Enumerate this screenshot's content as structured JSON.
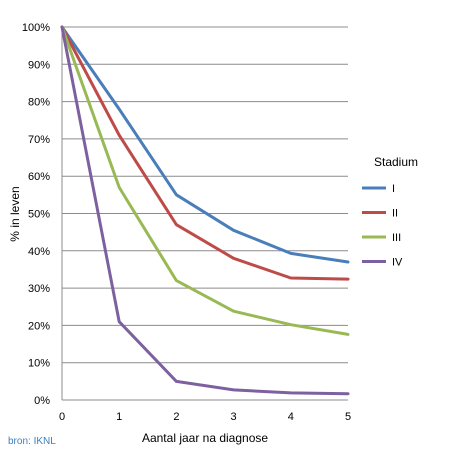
{
  "chart_data": {
    "type": "line",
    "xlabel": "Aantal jaar na diagnose",
    "ylabel": "% in leven",
    "x": [
      0,
      1,
      2,
      3,
      4,
      5
    ],
    "xlim": [
      0,
      5
    ],
    "ylim": [
      0,
      100
    ],
    "y_ticks": [
      "0%",
      "10%",
      "20%",
      "30%",
      "40%",
      "50%",
      "60%",
      "70%",
      "80%",
      "90%",
      "100%"
    ],
    "x_ticks": [
      "0",
      "1",
      "2",
      "3",
      "4",
      "5"
    ],
    "grid": "horizontal",
    "legend_title": "Stadium",
    "legend_position": "right",
    "series": [
      {
        "name": "I",
        "color": "#4a7ebb",
        "values": [
          100,
          78,
          55,
          45.5,
          39.3,
          37
        ]
      },
      {
        "name": "II",
        "color": "#be4b48",
        "values": [
          100,
          71,
          47,
          38,
          32.7,
          32.4
        ]
      },
      {
        "name": "III",
        "color": "#98b954",
        "values": [
          100,
          57,
          32,
          23.8,
          20.2,
          17.6
        ]
      },
      {
        "name": "IV",
        "color": "#7d60a0",
        "values": [
          100,
          21,
          5,
          2.7,
          1.9,
          1.7
        ]
      }
    ]
  },
  "source_label": "bron: IKNL"
}
